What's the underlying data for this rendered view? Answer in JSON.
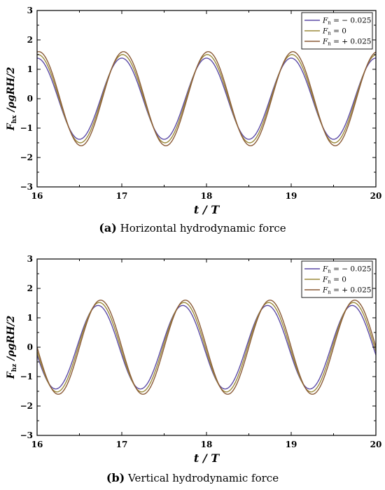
{
  "chart_data": [
    {
      "type": "line",
      "caption_letter": "(a)",
      "caption_text": " Horizontal hydrodynamic force",
      "xlabel": "t / T",
      "ylabel": "F",
      "ylabel_sub": "hx",
      "ylabel_rest": " /ρgRH/2",
      "xlim": [
        16,
        20
      ],
      "ylim": [
        -3,
        3
      ],
      "xticks": [
        "16",
        "17",
        "18",
        "19",
        "20"
      ],
      "yticks": [
        "3",
        "2",
        "1",
        "0",
        "−1",
        "−2",
        "−3"
      ],
      "legend_position": "top-right",
      "period": 1,
      "series": [
        {
          "name_pre": "F",
          "name_sub": "n",
          "name_val": " = − 0.025",
          "color": "#5b4aa6",
          "amplitude": 1.38,
          "phase": 0.0
        },
        {
          "name_pre": "F",
          "name_sub": "n",
          "name_val": " =     0",
          "color": "#9b8a3a",
          "amplitude": 1.5,
          "phase": 0.01
        },
        {
          "name_pre": "F",
          "name_sub": "n",
          "name_val": " = + 0.025",
          "color": "#8a5a36",
          "amplitude": 1.6,
          "phase": 0.02
        }
      ],
      "waveform": "cos",
      "x_at_first_peak": 17.0
    },
    {
      "type": "line",
      "caption_letter": "(b)",
      "caption_text": " Vertical hydrodynamic force",
      "xlabel": "t / T",
      "ylabel": "F",
      "ylabel_sub": "hz",
      "ylabel_rest": " /ρgRH/2",
      "xlim": [
        16,
        20
      ],
      "ylim": [
        -3,
        3
      ],
      "xticks": [
        "16",
        "17",
        "18",
        "19",
        "20"
      ],
      "yticks": [
        "3",
        "2",
        "1",
        "0",
        "−1",
        "−2",
        "−3"
      ],
      "legend_position": "top-right",
      "period": 1,
      "series": [
        {
          "name_pre": "F",
          "name_sub": "n",
          "name_val": " = − 0.025",
          "color": "#5b4aa6",
          "amplitude": 1.42,
          "phase": 0.0
        },
        {
          "name_pre": "F",
          "name_sub": "n",
          "name_val": " =     0",
          "color": "#9b8a3a",
          "amplitude": 1.52,
          "phase": 0.015
        },
        {
          "name_pre": "F",
          "name_sub": "n",
          "name_val": " = + 0.025",
          "color": "#8a5a36",
          "amplitude": 1.6,
          "phase": 0.03
        }
      ],
      "waveform": "cos",
      "x_at_first_peak": 16.72
    }
  ]
}
